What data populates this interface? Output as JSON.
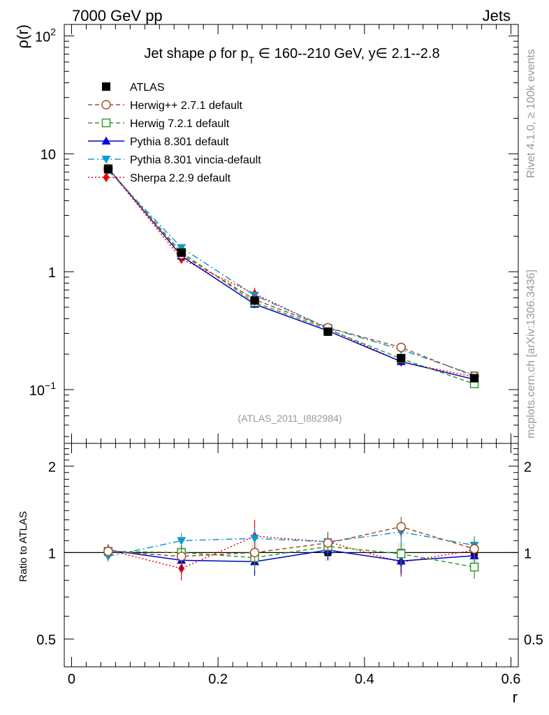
{
  "header": {
    "left": "7000 GeV pp",
    "right": "Jets"
  },
  "side_labels": {
    "rivet": "Rivet 4.1.0, ≥ 100k events",
    "mcplots": "mcplots.cern.ch [arXiv:1306.3436]"
  },
  "colors": {
    "atlas": "#000000",
    "herwigpp": "#a0522d",
    "herwig7": "#339933",
    "pythia": "#0000cc",
    "vincia": "#1199cc",
    "sherpa": "#ee0000"
  },
  "chart_data": [
    {
      "type": "line",
      "title": "Jet shape ρ for p_T ∈ 160--210 GeV, y∈ 2.1--2.8",
      "title_parts": {
        "a": "Jet shape ρ for p",
        "sub": "T",
        "b": " ∈ 160--210 GeV, y∈ 2.1--2.8"
      },
      "ylabel": "ρ(r)",
      "yscale": "log",
      "ylim": [
        0.035,
        125
      ],
      "xlim": [
        -0.01,
        0.61
      ],
      "ytick_labels": [
        {
          "value": 0.1,
          "base": "10",
          "exp": "−1"
        },
        {
          "value": 1,
          "base": "1",
          "exp": ""
        },
        {
          "value": 10,
          "base": "10",
          "exp": ""
        },
        {
          "value": 100,
          "base": "10",
          "exp": "2"
        }
      ],
      "watermark": "(ATLAS_2011_I882984)",
      "x": [
        0.05,
        0.15,
        0.25,
        0.35,
        0.45,
        0.55
      ],
      "series": [
        {
          "name": "ATLAS",
          "style": "data",
          "color": "#000000",
          "marker": "square",
          "values": [
            7.4,
            1.45,
            0.57,
            0.31,
            0.185,
            0.125
          ],
          "errors": [
            0.25,
            0.08,
            0.05,
            0.02,
            0.015,
            0.01
          ]
        },
        {
          "name": "Herwig++ 2.7.1 default",
          "style": "dashed",
          "color": "#a0522d",
          "marker": "circle-open",
          "values": [
            7.5,
            1.4,
            0.58,
            0.335,
            0.228,
            0.13
          ],
          "errors": [
            0.15,
            0.04,
            0.02,
            0.01,
            0.01,
            0.008
          ]
        },
        {
          "name": "Herwig 7.2.1 default",
          "style": "dashed",
          "color": "#339933",
          "marker": "square-open",
          "values": [
            7.5,
            1.46,
            0.55,
            0.325,
            0.183,
            0.112
          ],
          "errors": [
            0.15,
            0.04,
            0.02,
            0.01,
            0.008,
            0.008
          ]
        },
        {
          "name": "Pythia 8.301 default",
          "style": "solid",
          "color": "#0000cc",
          "marker": "triangle-up",
          "values": [
            7.55,
            1.36,
            0.53,
            0.315,
            0.173,
            0.122
          ],
          "errors": [
            0.15,
            0.05,
            0.04,
            0.015,
            0.01,
            0.008
          ]
        },
        {
          "name": "Pythia 8.301 vincia-default",
          "style": "dashdot",
          "color": "#1199cc",
          "marker": "triangle-down",
          "values": [
            7.2,
            1.6,
            0.63,
            0.335,
            0.218,
            0.133
          ],
          "errors": [
            0.15,
            0.05,
            0.03,
            0.015,
            0.012,
            0.008
          ]
        },
        {
          "name": "Sherpa 2.2.9 default",
          "style": "dotted",
          "color": "#ee0000",
          "marker": "diamond",
          "values": [
            7.5,
            1.28,
            0.65,
            0.33,
            0.172,
            0.128
          ],
          "errors": [
            0.2,
            0.08,
            0.08,
            0.02,
            0.015,
            0.01
          ]
        }
      ]
    },
    {
      "type": "line",
      "ylabel": "Ratio to ATLAS",
      "xlabel": "r",
      "yscale": "log",
      "ylim": [
        0.4,
        2.4
      ],
      "xlim": [
        -0.01,
        0.61
      ],
      "ytick_labels": [
        {
          "value": 0.5,
          "label": "0.5"
        },
        {
          "value": 1,
          "label": "1"
        },
        {
          "value": 2,
          "label": "2"
        }
      ],
      "xtick_labels": [
        {
          "value": 0,
          "label": "0"
        },
        {
          "value": 0.2,
          "label": "0.2"
        },
        {
          "value": 0.4,
          "label": "0.4"
        },
        {
          "value": 0.6,
          "label": "0.6"
        }
      ],
      "band": {
        "values": [
          1,
          1,
          1,
          1,
          1,
          1
        ],
        "errors": [
          0.034,
          0.055,
          0.088,
          0.065,
          0.081,
          0.08
        ]
      },
      "series": [
        {
          "name": "Herwig++ 2.7.1 default",
          "values": [
            1.01,
            0.97,
            1.0,
            1.08,
            1.23,
            1.03
          ],
          "errors": [
            0.04,
            0.06,
            0.09,
            0.07,
            0.1,
            0.08
          ]
        },
        {
          "name": "Herwig 7.2.1 default",
          "values": [
            1.01,
            1.0,
            0.96,
            1.05,
            0.99,
            0.89
          ],
          "errors": [
            0.04,
            0.06,
            0.09,
            0.07,
            0.09,
            0.08
          ]
        },
        {
          "name": "Pythia 8.301 default",
          "values": [
            1.02,
            0.94,
            0.93,
            1.02,
            0.935,
            0.975
          ],
          "errors": [
            0.04,
            0.07,
            0.1,
            0.08,
            0.09,
            0.08
          ]
        },
        {
          "name": "Pythia 8.301 vincia-default",
          "values": [
            0.97,
            1.1,
            1.12,
            1.09,
            1.18,
            1.06
          ],
          "errors": [
            0.04,
            0.07,
            0.1,
            0.08,
            0.1,
            0.08
          ]
        },
        {
          "name": "Sherpa 2.2.9 default",
          "values": [
            1.02,
            0.88,
            1.14,
            1.09,
            0.925,
            1.02
          ],
          "errors": [
            0.05,
            0.08,
            0.16,
            0.09,
            0.1,
            0.09
          ]
        }
      ]
    }
  ]
}
